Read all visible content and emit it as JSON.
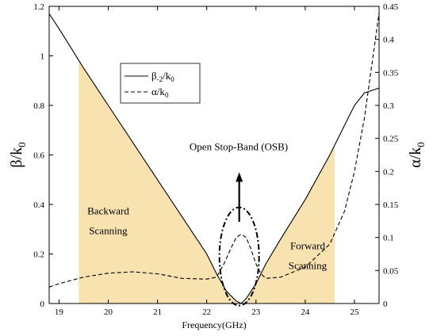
{
  "chart_data": {
    "type": "line",
    "xlabel": "Frequency(GHz)",
    "ylabel_left": "β/k",
    "ylabel_left_sub": "0",
    "ylabel_right": "α/k",
    "ylabel_right_sub": "0",
    "xlim": [
      18.8,
      25.5
    ],
    "ylim_left": [
      0,
      1.2
    ],
    "ylim_right": [
      0,
      0.45
    ],
    "xticks": [
      19,
      20,
      21,
      22,
      23,
      24,
      25
    ],
    "xtick_labels": [
      "19",
      "20",
      "21",
      "22",
      "23",
      "24",
      "25"
    ],
    "yticks_left": [
      0,
      0.2,
      0.4,
      0.6,
      0.8,
      1.0,
      1.2
    ],
    "ytick_labels_left": [
      "0",
      "0.2",
      "0.4",
      "0.6",
      "0.8",
      "1",
      "1.2"
    ],
    "yticks_right": [
      0,
      0.05,
      0.1,
      0.15,
      0.2,
      0.25,
      0.3,
      0.35,
      0.4,
      0.45
    ],
    "ytick_labels_right": [
      "0",
      "0.05",
      "0.1",
      "0.15",
      "0.2",
      "0.25",
      "0.3",
      "0.35",
      "0.4",
      "0.45"
    ],
    "grid": false,
    "legend_placement": "upper-left",
    "legend": [
      {
        "label": "β",
        "sub": "-2",
        "suffix": "/k",
        "sub2": "0",
        "style": "solid"
      },
      {
        "label": "α/k",
        "sub": "0",
        "suffix": "",
        "sub2": "",
        "style": "dashed"
      }
    ],
    "series": [
      {
        "axis": "left",
        "style": "solid",
        "x": [
          18.8,
          19.0,
          19.5,
          20.0,
          20.5,
          21.0,
          21.5,
          22.0,
          22.2,
          22.4,
          22.6,
          22.7,
          22.8,
          23.0,
          23.2,
          23.5,
          24.0,
          24.5,
          24.8,
          25.0,
          25.2,
          25.5
        ],
        "y": [
          1.17,
          1.11,
          0.95,
          0.8,
          0.65,
          0.5,
          0.35,
          0.2,
          0.12,
          0.05,
          0.01,
          0.0,
          0.02,
          0.08,
          0.16,
          0.26,
          0.42,
          0.6,
          0.72,
          0.8,
          0.85,
          0.87
        ]
      },
      {
        "axis": "right",
        "style": "dashed",
        "x": [
          18.8,
          19.0,
          19.5,
          20.0,
          20.5,
          21.0,
          21.5,
          22.0,
          22.2,
          22.35,
          22.5,
          22.6,
          22.7,
          22.8,
          22.9,
          23.0,
          23.1,
          23.2,
          23.5,
          24.0,
          24.5,
          24.8,
          25.0,
          25.2,
          25.5
        ],
        "y": [
          0.025,
          0.03,
          0.04,
          0.046,
          0.048,
          0.045,
          0.038,
          0.037,
          0.04,
          0.06,
          0.085,
          0.1,
          0.105,
          0.1,
          0.082,
          0.06,
          0.045,
          0.038,
          0.04,
          0.055,
          0.09,
          0.14,
          0.2,
          0.28,
          0.44
        ]
      }
    ],
    "shaded_regions": [
      {
        "label": "Backward Scanning",
        "x": [
          19.4,
          22.6
        ],
        "axis": "left"
      },
      {
        "label": "Forward Scanning",
        "x": [
          22.8,
          24.6
        ],
        "axis": "left"
      }
    ],
    "annotations": [
      {
        "text": "Backward",
        "x": 20.0,
        "y": 0.36
      },
      {
        "text": "Scanning",
        "x": 20.0,
        "y": 0.28
      },
      {
        "text": "Forward",
        "x": 24.05,
        "y": 0.22
      },
      {
        "text": "Scanning",
        "x": 24.05,
        "y": 0.14
      },
      {
        "text": "Open Stop-Band (OSB)",
        "x": 22.65,
        "y": 0.62
      }
    ],
    "colors": {
      "shade": "#f7e2b0",
      "line": "#000000"
    }
  }
}
